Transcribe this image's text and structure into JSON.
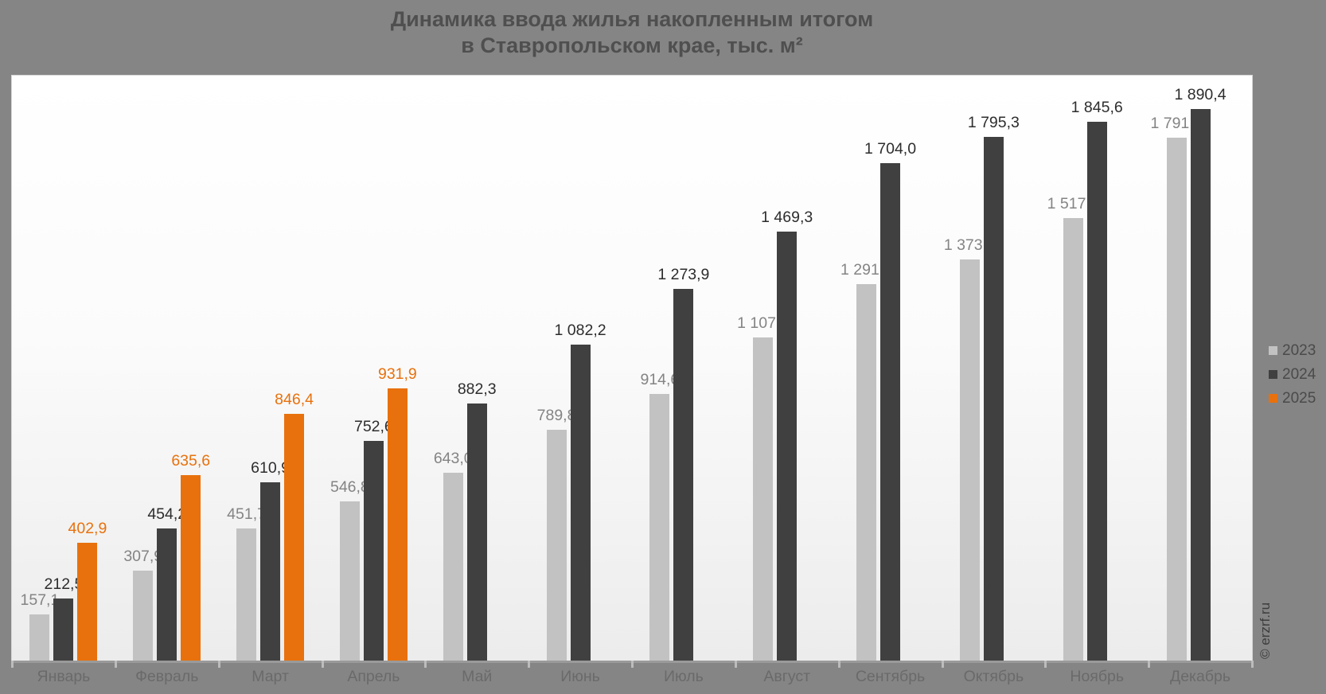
{
  "title": {
    "line1": "Динамика ввода жилья накопленным итогом",
    "line2": "в Ставропольском крае, тыс. м²"
  },
  "watermark": "© erzrf.ru",
  "colors": {
    "background": "#858585",
    "plot_gradient_top": "#ffffff",
    "plot_gradient_bottom": "#ececec",
    "title_text": "#4f4f4f",
    "month_text": "#6a6a6a",
    "legend_text": "#4a4a4a",
    "axis_line": "#9a9a9a",
    "axis_tick": "#bcbcbc",
    "watermark_text": "#3d3d3d"
  },
  "chart_data": {
    "type": "bar",
    "title": "Динамика ввода жилья накопленным итогом в Ставропольском крае, тыс. м²",
    "categories": [
      "Январь",
      "Февраль",
      "Март",
      "Апрель",
      "Май",
      "Июнь",
      "Июль",
      "Август",
      "Сентябрь",
      "Октябрь",
      "Ноябрь",
      "Декабрь"
    ],
    "series": [
      {
        "name": "2023",
        "color": "#c2c2c2",
        "label_color": "#848484",
        "values": [
          157.1,
          307.9,
          451.7,
          546.8,
          643.0,
          789.8,
          914.6,
          1107.5,
          1291.6,
          1373.9,
          1517.7,
          1791.9
        ],
        "labels": [
          "157,1",
          "307,9",
          "451,7",
          "546,8",
          "643,0",
          "789,8",
          "914,6",
          "1 107,5",
          "1 291,6",
          "1 373,9",
          "1 517,7",
          "1 791,9"
        ]
      },
      {
        "name": "2024",
        "color": "#404040",
        "label_color": "#2d2d2d",
        "values": [
          212.5,
          454.2,
          610.9,
          752.6,
          882.3,
          1082.2,
          1273.9,
          1469.3,
          1704.0,
          1795.3,
          1845.6,
          1890.4
        ],
        "labels": [
          "212,5",
          "454,2",
          "610,9",
          "752,6",
          "882,3",
          "1 082,2",
          "1 273,9",
          "1 469,3",
          "1 704,0",
          "1 795,3",
          "1 845,6",
          "1 890,4"
        ]
      },
      {
        "name": "2025",
        "color": "#e8710d",
        "label_color": "#e8710d",
        "values": [
          402.9,
          635.6,
          846.4,
          931.9,
          null,
          null,
          null,
          null,
          null,
          null,
          null,
          null
        ],
        "labels": [
          "402,9",
          "635,6",
          "846,4",
          "931,9",
          null,
          null,
          null,
          null,
          null,
          null,
          null,
          null
        ]
      }
    ],
    "ylim": [
      0,
      2005
    ],
    "grid": false,
    "legend": [
      "2023",
      "2024",
      "2025"
    ],
    "legend_position": "right"
  }
}
